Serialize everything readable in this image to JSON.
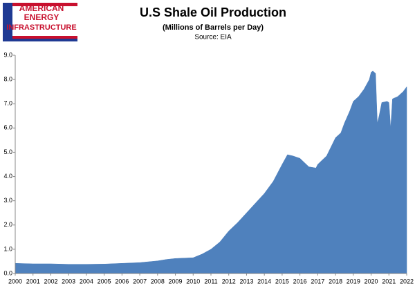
{
  "logo": {
    "lines": [
      "AMERICAN",
      "ENERGY",
      "INFRASTRUCTURE"
    ]
  },
  "chart_data": {
    "type": "area",
    "title": "U.S Shale Oil Production",
    "subtitle": "(Millions of Barrels per Day)",
    "source": "Source: EIA",
    "color": "#4f81bd",
    "grid": false,
    "x": [
      2000,
      2001,
      2002,
      2003,
      2004,
      2005,
      2006,
      2007,
      2008,
      2008.5,
      2009,
      2010,
      2010.5,
      2011,
      2011.5,
      2012,
      2012.5,
      2013,
      2013.5,
      2014,
      2014.5,
      2015,
      2015.3,
      2015.6,
      2016,
      2016.5,
      2016.9,
      2017,
      2017.5,
      2018,
      2018.3,
      2018.5,
      2018.8,
      2019,
      2019.3,
      2019.6,
      2019.9,
      2020,
      2020.1,
      2020.25,
      2020.35,
      2020.45,
      2020.6,
      2020.9,
      2021,
      2021.1,
      2021.2,
      2021.5,
      2021.8,
      2022
    ],
    "values": [
      0.42,
      0.4,
      0.4,
      0.38,
      0.38,
      0.39,
      0.42,
      0.45,
      0.52,
      0.58,
      0.62,
      0.65,
      0.8,
      1.0,
      1.3,
      1.75,
      2.1,
      2.5,
      2.9,
      3.3,
      3.8,
      4.5,
      4.9,
      4.85,
      4.75,
      4.4,
      4.35,
      4.5,
      4.85,
      5.6,
      5.8,
      6.2,
      6.7,
      7.1,
      7.3,
      7.6,
      8.0,
      8.3,
      8.35,
      8.25,
      6.2,
      6.5,
      7.05,
      7.1,
      7.05,
      6.0,
      7.2,
      7.3,
      7.5,
      7.7
    ],
    "xlim": [
      2000,
      2022
    ],
    "xticks": [
      2000,
      2001,
      2002,
      2003,
      2004,
      2005,
      2006,
      2007,
      2008,
      2009,
      2010,
      2011,
      2012,
      2013,
      2014,
      2015,
      2016,
      2017,
      2018,
      2019,
      2020,
      2021,
      2022
    ],
    "ylim": [
      0,
      9
    ],
    "yticks": [
      {
        "value": 0,
        "label": "0.0"
      },
      {
        "value": 1,
        "label": "1.0"
      },
      {
        "value": 2,
        "label": "2.0"
      },
      {
        "value": 3,
        "label": "3.0"
      },
      {
        "value": 4,
        "label": "4.0"
      },
      {
        "value": 5,
        "label": "5.0"
      },
      {
        "value": 6,
        "label": "6.0"
      },
      {
        "value": 7,
        "label": "7.0"
      },
      {
        "value": 8,
        "label": "8.0"
      },
      {
        "value": 9,
        "label": "9.0"
      }
    ]
  }
}
